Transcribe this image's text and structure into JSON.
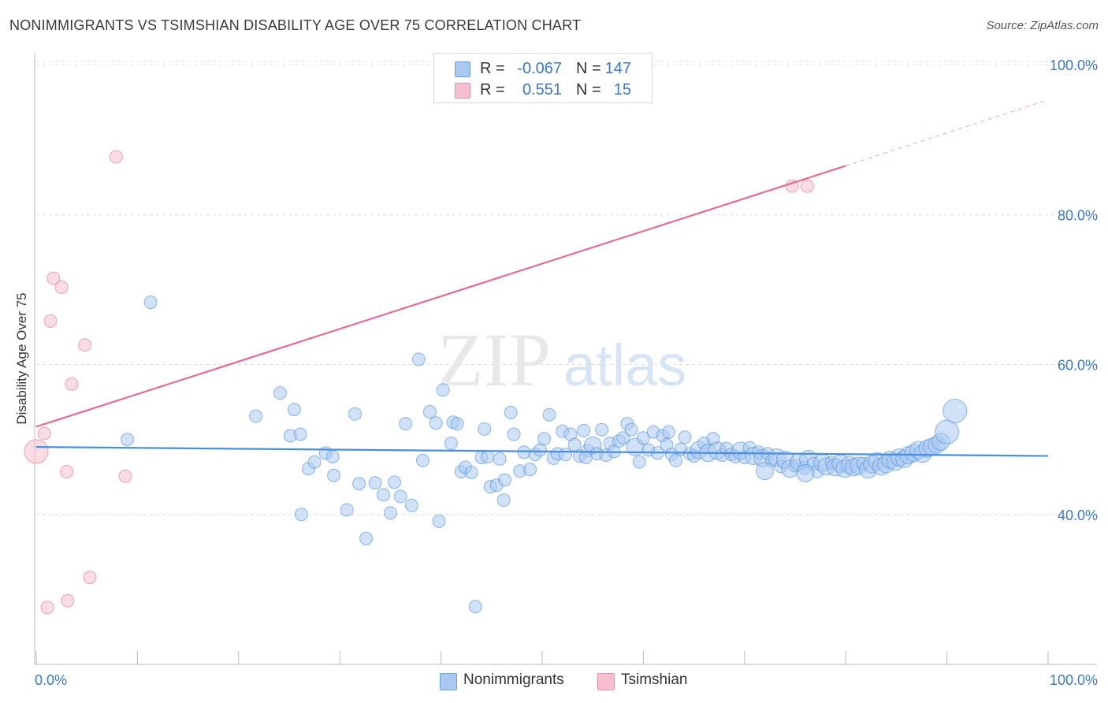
{
  "title": "NONIMMIGRANTS VS TSIMSHIAN DISABILITY AGE OVER 75 CORRELATION CHART",
  "source": "Source: ZipAtlas.com",
  "watermark": {
    "zip": "ZIP",
    "atlas": "atlas"
  },
  "legend": {
    "rows": [
      {
        "r_label": "R =",
        "r_value": "-0.067",
        "n_label": "N =",
        "n_value": "147",
        "color": "#a9c8f2"
      },
      {
        "r_label": "R =",
        "r_value": "0.551",
        "n_label": "N =",
        "n_value": "15",
        "color": "#f6bfd0"
      }
    ]
  },
  "bottom_legend": [
    {
      "label": "Nonimmigrants",
      "color": "#a9c8f2"
    },
    {
      "label": "Tsimshian",
      "color": "#f6bfd0"
    }
  ],
  "chart_data": {
    "type": "scatter",
    "title": "NONIMMIGRANTS VS TSIMSHIAN DISABILITY AGE OVER 75 CORRELATION CHART",
    "xlabel": "",
    "ylabel": "Disability Age Over 75",
    "xlim": [
      0,
      100
    ],
    "ylim": [
      20,
      102
    ],
    "x_tick_labels": [
      "0.0%",
      "100.0%"
    ],
    "y_ticks": [
      40,
      60,
      80,
      100
    ],
    "y_tick_labels": [
      "40.0%",
      "60.0%",
      "80.0%",
      "100.0%"
    ],
    "grid": true,
    "legend_position": "top-center",
    "series": [
      {
        "name": "Nonimmigrants",
        "color": "#4a8fdb",
        "fill": "#a9c8f2",
        "trend": {
          "x1": 0,
          "y1": 49.0,
          "x2": 100,
          "y2": 47.8
        },
        "points": [
          [
            11.3,
            68.3,
            1
          ],
          [
            9.0,
            50.0,
            1
          ],
          [
            21.7,
            53.1,
            1
          ],
          [
            24.1,
            56.2,
            1
          ],
          [
            25.5,
            54.0,
            1
          ],
          [
            25.1,
            50.5,
            1
          ],
          [
            26.1,
            50.7,
            1
          ],
          [
            26.2,
            40.0,
            1
          ],
          [
            26.9,
            46.1,
            1
          ],
          [
            27.5,
            47.0,
            1
          ],
          [
            28.6,
            48.2,
            1
          ],
          [
            29.4,
            45.2,
            1
          ],
          [
            29.3,
            47.7,
            1
          ],
          [
            30.7,
            40.6,
            1
          ],
          [
            31.5,
            53.4,
            1
          ],
          [
            32.6,
            36.8,
            1
          ],
          [
            33.5,
            44.2,
            1
          ],
          [
            34.3,
            42.6,
            1
          ],
          [
            35.0,
            40.2,
            1
          ],
          [
            35.4,
            44.3,
            1
          ],
          [
            36.0,
            42.4,
            1
          ],
          [
            36.5,
            52.1,
            1
          ],
          [
            37.1,
            41.2,
            1
          ],
          [
            37.8,
            60.7,
            1
          ],
          [
            38.2,
            47.2,
            1
          ],
          [
            38.9,
            53.7,
            1
          ],
          [
            39.5,
            52.2,
            1
          ],
          [
            39.8,
            39.1,
            1
          ],
          [
            40.2,
            56.6,
            1
          ],
          [
            41.0,
            49.5,
            1
          ],
          [
            41.2,
            52.3,
            1
          ],
          [
            41.6,
            52.1,
            1
          ],
          [
            42.0,
            45.7,
            1
          ],
          [
            42.4,
            46.3,
            1
          ],
          [
            43.0,
            45.6,
            1
          ],
          [
            43.4,
            27.7,
            1
          ],
          [
            44.0,
            47.6,
            1
          ],
          [
            44.3,
            51.4,
            1
          ],
          [
            44.6,
            47.7,
            1
          ],
          [
            44.9,
            43.7,
            1
          ],
          [
            45.5,
            43.9,
            1
          ],
          [
            45.8,
            47.4,
            1
          ],
          [
            46.3,
            44.6,
            1
          ],
          [
            46.9,
            53.6,
            1
          ],
          [
            47.2,
            50.7,
            1
          ],
          [
            47.8,
            45.8,
            1
          ],
          [
            48.2,
            48.3,
            1
          ],
          [
            48.8,
            46.0,
            1
          ],
          [
            49.3,
            48.0,
            1
          ],
          [
            49.8,
            48.6,
            1
          ],
          [
            50.2,
            50.1,
            1
          ],
          [
            50.7,
            53.3,
            1
          ],
          [
            51.1,
            47.5,
            1
          ],
          [
            51.5,
            48.1,
            1
          ],
          [
            52.0,
            51.1,
            1
          ],
          [
            52.3,
            48.0,
            1
          ],
          [
            52.8,
            50.7,
            1
          ],
          [
            53.2,
            49.3,
            1
          ],
          [
            53.7,
            47.8,
            1
          ],
          [
            54.1,
            51.2,
            1
          ],
          [
            54.5,
            48.5,
            1
          ],
          [
            55.0,
            49.2,
            2
          ],
          [
            55.4,
            48.1,
            1
          ],
          [
            55.9,
            51.3,
            1
          ],
          [
            56.3,
            47.9,
            1
          ],
          [
            56.7,
            49.5,
            1
          ],
          [
            57.1,
            48.4,
            1
          ],
          [
            57.6,
            49.8,
            1
          ],
          [
            58.0,
            50.2,
            1
          ],
          [
            58.4,
            52.1,
            1
          ],
          [
            58.8,
            51.3,
            1
          ],
          [
            59.2,
            49.0,
            2
          ],
          [
            59.6,
            47.0,
            1
          ],
          [
            60.0,
            50.2,
            1
          ],
          [
            60.5,
            48.6,
            1
          ],
          [
            61.0,
            51.0,
            1
          ],
          [
            61.4,
            48.2,
            1
          ],
          [
            61.9,
            50.5,
            1
          ],
          [
            62.3,
            49.3,
            1
          ],
          [
            62.8,
            48.0,
            1
          ],
          [
            63.2,
            47.2,
            1
          ],
          [
            63.7,
            48.7,
            1
          ],
          [
            64.1,
            50.3,
            1
          ],
          [
            64.6,
            48.1,
            1
          ],
          [
            65.0,
            47.8,
            1
          ],
          [
            65.5,
            48.6,
            2
          ],
          [
            66.0,
            49.5,
            1
          ],
          [
            66.4,
            48.2,
            2
          ],
          [
            66.9,
            50.1,
            1
          ],
          [
            67.3,
            48.5,
            2
          ],
          [
            67.8,
            47.9,
            1
          ],
          [
            68.2,
            48.8,
            1
          ],
          [
            68.7,
            48.0,
            1
          ],
          [
            69.1,
            47.7,
            1
          ],
          [
            69.6,
            48.5,
            2
          ],
          [
            70.0,
            47.6,
            1
          ],
          [
            70.5,
            48.9,
            1
          ],
          [
            70.9,
            47.8,
            2
          ],
          [
            71.4,
            48.3,
            1
          ],
          [
            71.8,
            47.5,
            2
          ],
          [
            72.3,
            48.1,
            1
          ],
          [
            72.7,
            47.2,
            1
          ],
          [
            73.2,
            47.6,
            2
          ],
          [
            73.6,
            46.4,
            1
          ],
          [
            74.0,
            47.3,
            2
          ],
          [
            74.5,
            46.1,
            2
          ],
          [
            75.0,
            46.5,
            1
          ],
          [
            75.4,
            47.0,
            2
          ],
          [
            75.9,
            46.2,
            1
          ],
          [
            76.3,
            47.4,
            2
          ],
          [
            76.8,
            46.8,
            1
          ],
          [
            77.2,
            45.7,
            1
          ],
          [
            77.7,
            46.9,
            2
          ],
          [
            78.1,
            46.4,
            2
          ],
          [
            78.6,
            46.9,
            1
          ],
          [
            79.0,
            46.3,
            2
          ],
          [
            79.5,
            46.8,
            2
          ],
          [
            79.9,
            46.1,
            2
          ],
          [
            80.4,
            46.6,
            2
          ],
          [
            80.8,
            46.3,
            2
          ],
          [
            81.3,
            46.5,
            2
          ],
          [
            81.7,
            46.8,
            1
          ],
          [
            82.2,
            46.0,
            2
          ],
          [
            82.6,
            46.7,
            2
          ],
          [
            83.1,
            47.1,
            2
          ],
          [
            83.5,
            46.4,
            2
          ],
          [
            84.0,
            46.7,
            2
          ],
          [
            84.4,
            47.3,
            2
          ],
          [
            84.9,
            47.0,
            2
          ],
          [
            85.3,
            47.6,
            2
          ],
          [
            85.8,
            47.4,
            2
          ],
          [
            86.2,
            47.9,
            2
          ],
          [
            86.7,
            48.2,
            2
          ],
          [
            87.2,
            48.6,
            2
          ],
          [
            87.6,
            48.1,
            2
          ],
          [
            88.1,
            48.8,
            2
          ],
          [
            88.5,
            49.0,
            2
          ],
          [
            89.0,
            49.3,
            2
          ],
          [
            89.4,
            49.7,
            2
          ],
          [
            90.0,
            51.0,
            3
          ],
          [
            90.8,
            53.8,
            3
          ],
          [
            46.2,
            41.9,
            1
          ],
          [
            31.9,
            44.1,
            1
          ],
          [
            54.3,
            47.6,
            1
          ],
          [
            62.5,
            51.0,
            1
          ],
          [
            72.0,
            45.8,
            2
          ],
          [
            76.0,
            45.5,
            2
          ]
        ]
      },
      {
        "name": "Tsimshian",
        "color": "#e56b94",
        "fill": "#f6bfd0",
        "trend": {
          "x1": 0,
          "y1": 51.7,
          "x2": 80.0,
          "y2": 86.5,
          "dash_to_x": 100,
          "dash_to_y": 95.3
        },
        "points": [
          [
            0.0,
            48.4,
            3
          ],
          [
            0.8,
            50.8,
            1
          ],
          [
            1.1,
            27.6,
            1
          ],
          [
            1.4,
            65.8,
            1
          ],
          [
            1.7,
            71.5,
            1
          ],
          [
            2.5,
            70.3,
            1
          ],
          [
            3.0,
            45.7,
            1
          ],
          [
            3.5,
            57.4,
            1
          ],
          [
            4.8,
            62.6,
            1
          ],
          [
            5.3,
            31.6,
            1
          ],
          [
            3.1,
            28.5,
            1
          ],
          [
            7.9,
            87.7,
            1
          ],
          [
            8.8,
            45.1,
            1
          ],
          [
            74.7,
            83.8,
            1
          ],
          [
            76.2,
            83.8,
            1
          ]
        ]
      }
    ]
  }
}
